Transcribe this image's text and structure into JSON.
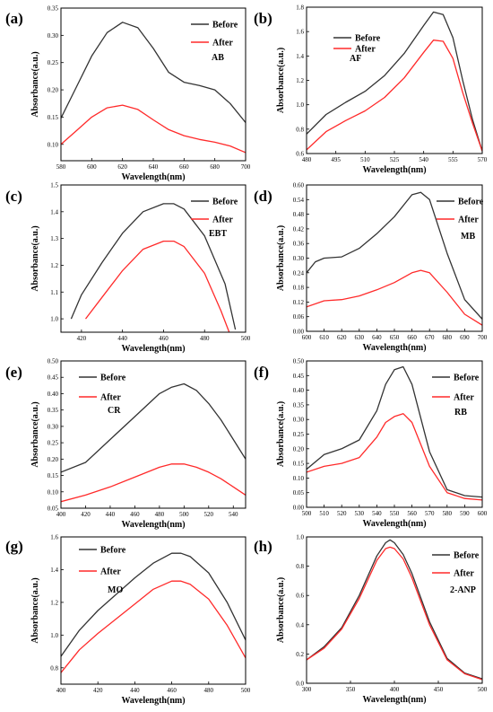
{
  "chart_data": [
    {
      "panel_label": "(a)",
      "type": "line",
      "dye": "AB",
      "xlabel": "Wavelength(nm)",
      "ylabel": "Absorbance(a.u.)",
      "xlim": [
        580,
        700
      ],
      "ylim": [
        0.07,
        0.35
      ],
      "xticks": [
        580,
        600,
        620,
        640,
        660,
        680,
        700
      ],
      "yticks": [
        "0.10",
        "0.15",
        "0.20",
        "0.25",
        "0.30",
        "0.35"
      ],
      "legend_position": "top-right",
      "series": [
        {
          "name": "Before",
          "color": "#333333",
          "x": [
            580,
            590,
            600,
            610,
            620,
            630,
            640,
            650,
            660,
            670,
            680,
            690,
            700
          ],
          "y": [
            0.148,
            0.205,
            0.262,
            0.305,
            0.324,
            0.314,
            0.276,
            0.232,
            0.214,
            0.208,
            0.2,
            0.175,
            0.14
          ]
        },
        {
          "name": "After",
          "color": "#ff2a2a",
          "x": [
            580,
            590,
            600,
            610,
            620,
            630,
            640,
            650,
            660,
            670,
            680,
            690,
            700
          ],
          "y": [
            0.1,
            0.125,
            0.15,
            0.167,
            0.172,
            0.164,
            0.145,
            0.127,
            0.116,
            0.109,
            0.104,
            0.097,
            0.085
          ]
        }
      ]
    },
    {
      "panel_label": "(b)",
      "type": "line",
      "dye": "AF",
      "xlabel": "Wavelength(nm)",
      "ylabel": "Absorbance(a.u.)",
      "xlim": [
        480,
        570
      ],
      "ylim": [
        0.6,
        1.8
      ],
      "xticks": [
        480,
        495,
        510,
        525,
        540,
        555,
        570
      ],
      "yticks": [
        "0.6",
        "0.8",
        "1.0",
        "1.2",
        "1.4",
        "1.6",
        "1.8"
      ],
      "legend_position": "top-left",
      "series": [
        {
          "name": "Before",
          "color": "#333333",
          "x": [
            480,
            490,
            500,
            510,
            520,
            530,
            540,
            545,
            550,
            555,
            560,
            565,
            570
          ],
          "y": [
            0.76,
            0.92,
            1.02,
            1.11,
            1.24,
            1.42,
            1.65,
            1.76,
            1.74,
            1.55,
            1.2,
            0.88,
            0.62
          ]
        },
        {
          "name": "After",
          "color": "#ff2a2a",
          "x": [
            480,
            490,
            500,
            510,
            520,
            530,
            540,
            545,
            550,
            555,
            560,
            565,
            570
          ],
          "y": [
            0.63,
            0.78,
            0.87,
            0.95,
            1.06,
            1.22,
            1.43,
            1.53,
            1.52,
            1.38,
            1.1,
            0.85,
            0.62
          ]
        }
      ]
    },
    {
      "panel_label": "(c)",
      "type": "line",
      "dye": "EBT",
      "xlabel": "Wavelength(nm)",
      "ylabel": "Absorbance(a.u.)",
      "xlim": [
        410,
        500
      ],
      "ylim": [
        0.95,
        1.5
      ],
      "xticks": [
        420,
        440,
        460,
        480,
        500
      ],
      "yticks": [
        "1.0",
        "1.1",
        "1.2",
        "1.3",
        "1.4",
        "1.5"
      ],
      "legend_position": "top-right",
      "series": [
        {
          "name": "Before",
          "color": "#333333",
          "x": [
            415,
            420,
            430,
            440,
            450,
            460,
            465,
            470,
            480,
            490,
            495
          ],
          "y": [
            1.0,
            1.09,
            1.21,
            1.32,
            1.4,
            1.43,
            1.43,
            1.41,
            1.31,
            1.13,
            0.96
          ]
        },
        {
          "name": "After",
          "color": "#ff2a2a",
          "x": [
            422,
            430,
            440,
            450,
            460,
            465,
            470,
            480,
            488,
            492
          ],
          "y": [
            1.0,
            1.08,
            1.18,
            1.26,
            1.29,
            1.29,
            1.27,
            1.17,
            1.03,
            0.95
          ]
        }
      ]
    },
    {
      "panel_label": "(d)",
      "type": "line",
      "dye": "MB",
      "xlabel": "Wavelength(nm)",
      "ylabel": "Absorbance(a.u.)",
      "xlim": [
        600,
        700
      ],
      "ylim": [
        0.0,
        0.6
      ],
      "xticks": [
        600,
        610,
        620,
        630,
        640,
        650,
        660,
        670,
        680,
        690,
        700
      ],
      "yticks": [
        "0.00",
        "0.06",
        "0.12",
        "0.18",
        "0.24",
        "0.30",
        "0.36",
        "0.42",
        "0.48",
        "0.54",
        "0.60"
      ],
      "legend_position": "top-right",
      "series": [
        {
          "name": "Before",
          "color": "#333333",
          "x": [
            600,
            605,
            610,
            620,
            630,
            640,
            650,
            660,
            665,
            670,
            680,
            690,
            700
          ],
          "y": [
            0.24,
            0.285,
            0.3,
            0.305,
            0.34,
            0.4,
            0.47,
            0.56,
            0.57,
            0.54,
            0.32,
            0.13,
            0.05
          ]
        },
        {
          "name": "After",
          "color": "#ff2a2a",
          "x": [
            600,
            610,
            620,
            630,
            640,
            650,
            660,
            665,
            670,
            680,
            690,
            700
          ],
          "y": [
            0.1,
            0.125,
            0.13,
            0.145,
            0.17,
            0.2,
            0.24,
            0.25,
            0.24,
            0.16,
            0.07,
            0.025
          ]
        }
      ]
    },
    {
      "panel_label": "(e)",
      "type": "line",
      "dye": "CR",
      "xlabel": "Wavelength(nm)",
      "ylabel": "Absorbance(a.u.)",
      "xlim": [
        400,
        550
      ],
      "ylim": [
        0.05,
        0.5
      ],
      "xticks": [
        400,
        420,
        440,
        460,
        480,
        500,
        520,
        540
      ],
      "yticks": [
        "0.05",
        "0.10",
        "0.15",
        "0.20",
        "0.25",
        "0.30",
        "0.35",
        "0.40",
        "0.45",
        "0.50"
      ],
      "legend_position": "top-left",
      "series": [
        {
          "name": "Before",
          "color": "#333333",
          "x": [
            400,
            420,
            440,
            460,
            480,
            490,
            500,
            510,
            520,
            530,
            540,
            550
          ],
          "y": [
            0.16,
            0.19,
            0.26,
            0.33,
            0.4,
            0.42,
            0.43,
            0.41,
            0.37,
            0.32,
            0.26,
            0.2
          ]
        },
        {
          "name": "After",
          "color": "#ff2a2a",
          "x": [
            400,
            420,
            440,
            460,
            480,
            490,
            500,
            510,
            520,
            530,
            540,
            550
          ],
          "y": [
            0.07,
            0.09,
            0.115,
            0.145,
            0.175,
            0.185,
            0.185,
            0.175,
            0.16,
            0.14,
            0.115,
            0.09
          ]
        }
      ]
    },
    {
      "panel_label": "(f)",
      "type": "line",
      "dye": "RB",
      "xlabel": "Wavelength(nm)",
      "ylabel": "Absorbance(a.u.)",
      "xlim": [
        500,
        600
      ],
      "ylim": [
        0.0,
        0.5
      ],
      "xticks": [
        500,
        510,
        520,
        530,
        540,
        550,
        560,
        570,
        580,
        590,
        600
      ],
      "yticks": [
        "0.00",
        "0.05",
        "0.10",
        "0.15",
        "0.20",
        "0.25",
        "0.30",
        "0.35",
        "0.40",
        "0.45",
        "0.50"
      ],
      "legend_position": "top-right",
      "series": [
        {
          "name": "Before",
          "color": "#333333",
          "x": [
            500,
            510,
            520,
            530,
            540,
            545,
            550,
            555,
            560,
            570,
            580,
            590,
            600
          ],
          "y": [
            0.13,
            0.18,
            0.2,
            0.23,
            0.33,
            0.42,
            0.47,
            0.48,
            0.42,
            0.19,
            0.06,
            0.04,
            0.035
          ]
        },
        {
          "name": "After",
          "color": "#ff2a2a",
          "x": [
            500,
            510,
            520,
            530,
            540,
            545,
            550,
            555,
            560,
            570,
            580,
            590,
            600
          ],
          "y": [
            0.12,
            0.14,
            0.15,
            0.17,
            0.24,
            0.29,
            0.31,
            0.32,
            0.29,
            0.14,
            0.05,
            0.03,
            0.025
          ]
        }
      ]
    },
    {
      "panel_label": "(g)",
      "type": "line",
      "dye": "MO",
      "xlabel": "Wavelength(nm)",
      "ylabel": "Absorbance(a.u.)",
      "xlim": [
        400,
        500
      ],
      "ylim": [
        0.7,
        1.6
      ],
      "xticks": [
        400,
        420,
        440,
        460,
        480,
        500
      ],
      "yticks": [
        "0.8",
        "1.0",
        "1.2",
        "1.4",
        "1.6"
      ],
      "legend_position": "top-left",
      "series": [
        {
          "name": "Before",
          "color": "#333333",
          "x": [
            400,
            410,
            420,
            430,
            440,
            450,
            460,
            465,
            470,
            480,
            490,
            500
          ],
          "y": [
            0.87,
            1.03,
            1.15,
            1.25,
            1.35,
            1.44,
            1.5,
            1.5,
            1.48,
            1.38,
            1.2,
            0.97
          ]
        },
        {
          "name": "After",
          "color": "#ff2a2a",
          "x": [
            400,
            410,
            420,
            430,
            440,
            450,
            460,
            465,
            470,
            480,
            490,
            500
          ],
          "y": [
            0.77,
            0.91,
            1.01,
            1.1,
            1.19,
            1.28,
            1.33,
            1.33,
            1.31,
            1.22,
            1.06,
            0.86
          ]
        }
      ]
    },
    {
      "panel_label": "(h)",
      "type": "line",
      "dye": "2-ANP",
      "xlabel": "Wavelength(nm)",
      "ylabel": "Absorbance(a.u.)",
      "xlim": [
        300,
        500
      ],
      "ylim": [
        0.0,
        1.0
      ],
      "xticks": [
        300,
        350,
        400,
        450,
        500
      ],
      "yticks": [
        "0.0",
        "0.2",
        "0.4",
        "0.6",
        "0.8",
        "1.0"
      ],
      "legend_position": "top-right",
      "series": [
        {
          "name": "Before",
          "color": "#333333",
          "x": [
            300,
            320,
            340,
            360,
            380,
            390,
            395,
            400,
            410,
            420,
            440,
            460,
            480,
            500
          ],
          "y": [
            0.16,
            0.25,
            0.38,
            0.6,
            0.87,
            0.96,
            0.98,
            0.96,
            0.88,
            0.75,
            0.42,
            0.17,
            0.07,
            0.03
          ]
        },
        {
          "name": "After",
          "color": "#ff2a2a",
          "x": [
            300,
            320,
            340,
            360,
            380,
            390,
            395,
            400,
            410,
            420,
            440,
            460,
            480,
            500
          ],
          "y": [
            0.16,
            0.24,
            0.37,
            0.58,
            0.84,
            0.92,
            0.93,
            0.92,
            0.85,
            0.72,
            0.4,
            0.16,
            0.065,
            0.025
          ]
        }
      ]
    }
  ]
}
